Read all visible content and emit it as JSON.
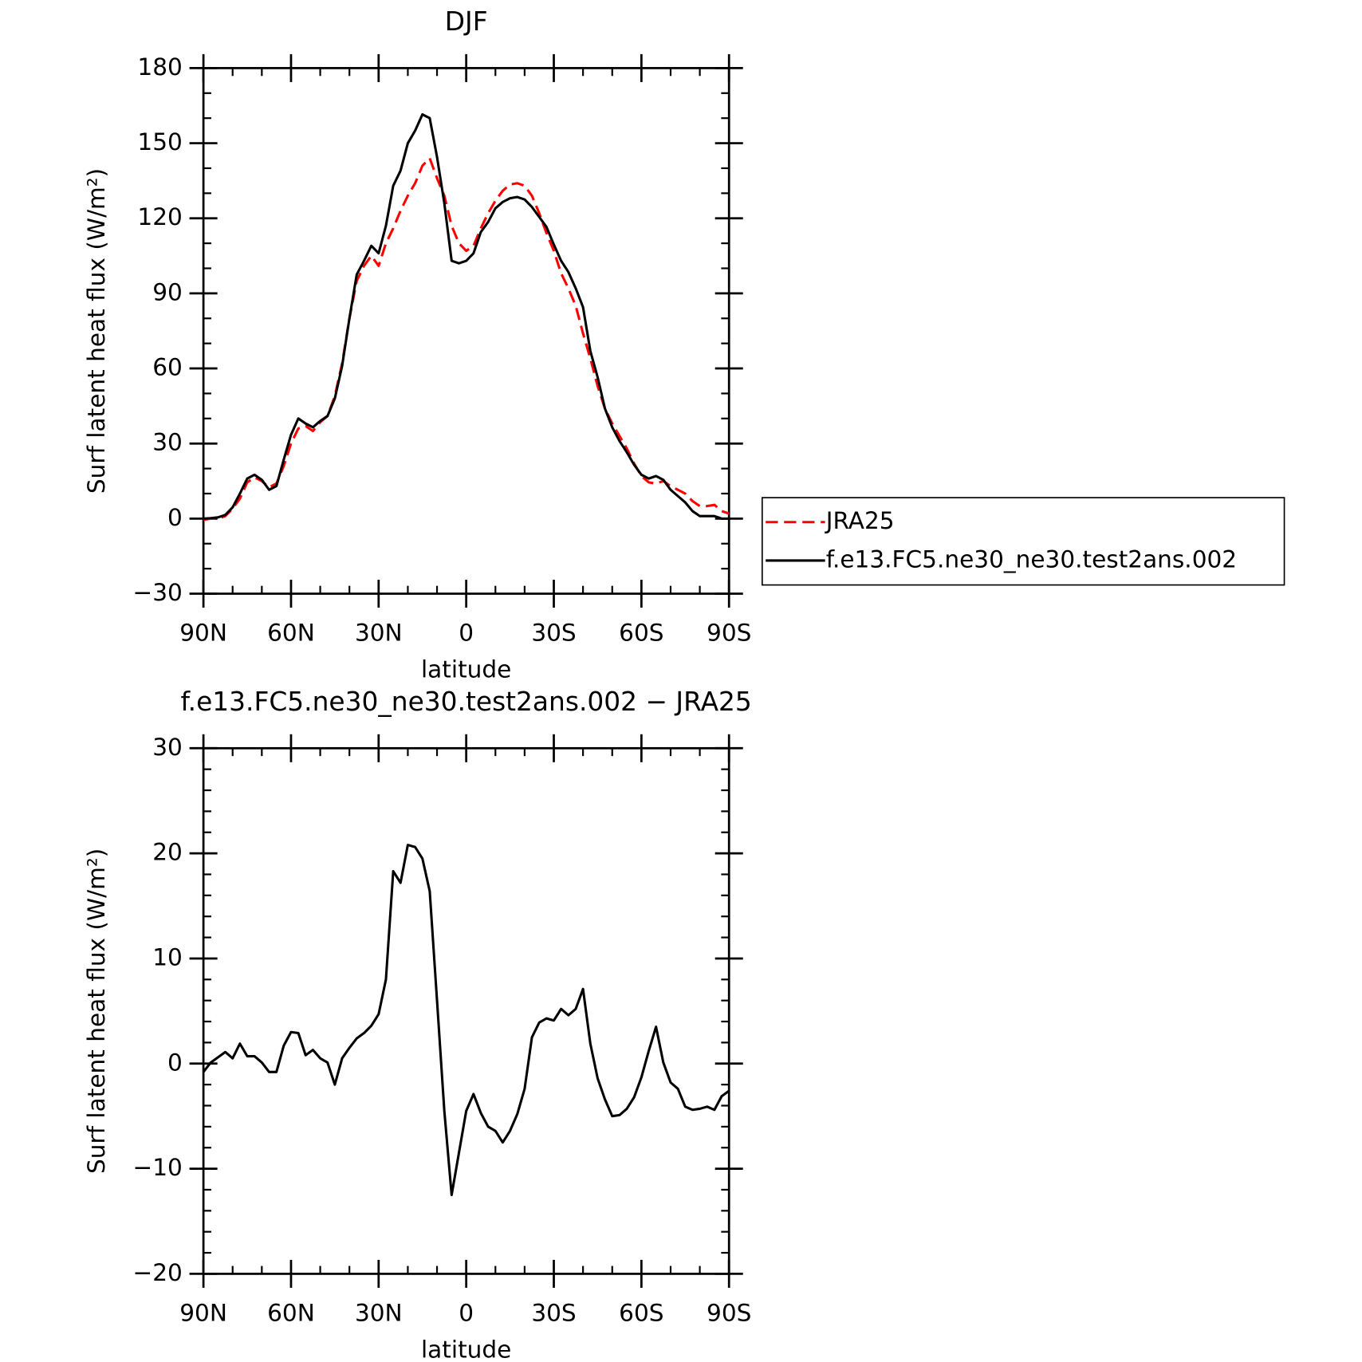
{
  "chart_data": [
    {
      "type": "line",
      "title": "DJF",
      "x_label": "latitude",
      "y_label": "Surf latent heat flux (W/m²)",
      "x": [
        90,
        87.5,
        85,
        82.5,
        80,
        77.5,
        75,
        72.5,
        70,
        67.5,
        65,
        62.5,
        60,
        57.5,
        55,
        52.5,
        50,
        47.5,
        45,
        42.5,
        40,
        37.5,
        35,
        32.5,
        30,
        27.5,
        25,
        22.5,
        20,
        17.5,
        15,
        12.5,
        10,
        7.5,
        5,
        2.5,
        0,
        -2.5,
        -5,
        -7.5,
        -10,
        -12.5,
        -15,
        -17.5,
        -20,
        -22.5,
        -25,
        -27.5,
        -30,
        -32.5,
        -35,
        -37.5,
        -40,
        -42.5,
        -45,
        -47.5,
        -50,
        -52.5,
        -55,
        -57.5,
        -60,
        -62.5,
        -65,
        -67.5,
        -70,
        -72.5,
        -75,
        -77.5,
        -80,
        -82.5,
        -85,
        -87.5,
        -90
      ],
      "xlim": [
        90,
        -90
      ],
      "xticks": [
        {
          "value": 90,
          "label": "90N"
        },
        {
          "value": 60,
          "label": "60N"
        },
        {
          "value": 30,
          "label": "30N"
        },
        0,
        {
          "value": -30,
          "label": "30S"
        },
        {
          "value": -60,
          "label": "60S"
        },
        {
          "value": -90,
          "label": "90S"
        }
      ],
      "ylim": [
        -30,
        180
      ],
      "yticks": [
        {
          "value": -30,
          "label": "−30"
        },
        0,
        30,
        60,
        90,
        120,
        150,
        180
      ],
      "legend": "right",
      "series": [
        {
          "name": "JRA25",
          "color": "#ff0000",
          "line_style": "dashed",
          "values": [
            -0.5,
            0,
            0,
            1,
            4,
            8,
            14.5,
            16.5,
            15,
            12.5,
            14,
            21,
            30,
            36,
            37,
            35,
            38.5,
            41,
            49,
            62,
            80,
            95,
            101,
            105,
            101,
            110,
            116,
            123,
            129,
            134,
            141,
            144,
            136,
            129,
            117,
            110,
            107,
            109,
            116,
            122,
            127,
            131,
            133.5,
            134,
            133,
            129,
            122,
            114,
            107,
            98,
            92,
            85,
            74,
            64,
            53,
            44,
            38,
            33,
            28,
            22,
            17,
            14.5,
            14,
            15,
            13,
            11.5,
            10,
            7,
            5,
            5,
            5.5,
            3,
            2
          ]
        },
        {
          "name": "f.e13.FC5.ne30_ne30.test2ans.002",
          "color": "#000000",
          "line_style": "solid",
          "values": [
            0,
            0.2,
            0.5,
            1.5,
            4.5,
            10,
            16,
            17.5,
            15.5,
            11.5,
            13,
            23.5,
            33.5,
            40,
            38,
            36.5,
            39,
            41,
            48,
            61,
            80,
            97.5,
            103,
            109,
            106,
            117,
            133,
            139,
            150,
            155,
            161.5,
            160,
            144.5,
            126,
            103,
            102,
            103,
            106,
            114.5,
            118.5,
            124,
            126.5,
            128,
            128.5,
            127.5,
            124.5,
            120.5,
            116.5,
            109.5,
            103,
            98.5,
            92,
            84.5,
            67,
            56.5,
            44,
            36.5,
            31,
            26.5,
            21.5,
            17.5,
            16,
            17,
            15.5,
            11.5,
            9,
            6.5,
            3,
            1,
            1,
            1,
            0,
            0
          ]
        }
      ]
    },
    {
      "type": "line",
      "title": "f.e13.FC5.ne30_ne30.test2ans.002 − JRA25",
      "x_label": "latitude",
      "y_label": "Surf latent heat flux (W/m²)",
      "x": [
        90,
        87.5,
        85,
        82.5,
        80,
        77.5,
        75,
        72.5,
        70,
        67.5,
        65,
        62.5,
        60,
        57.5,
        55,
        52.5,
        50,
        47.5,
        45,
        42.5,
        40,
        37.5,
        35,
        32.5,
        30,
        27.5,
        25,
        22.5,
        20,
        17.5,
        15,
        12.5,
        10,
        7.5,
        5,
        2.5,
        0,
        -2.5,
        -5,
        -7.5,
        -10,
        -12.5,
        -15,
        -17.5,
        -20,
        -22.5,
        -25,
        -27.5,
        -30,
        -32.5,
        -35,
        -37.5,
        -40,
        -42.5,
        -45,
        -47.5,
        -50,
        -52.5,
        -55,
        -57.5,
        -60,
        -62.5,
        -65,
        -67.5,
        -70,
        -72.5,
        -75,
        -77.5,
        -80,
        -82.5,
        -85,
        -87.5,
        -90
      ],
      "xlim": [
        90,
        -90
      ],
      "xticks": [
        {
          "value": 90,
          "label": "90N"
        },
        {
          "value": 60,
          "label": "60N"
        },
        {
          "value": 30,
          "label": "30N"
        },
        0,
        {
          "value": -30,
          "label": "30S"
        },
        {
          "value": -60,
          "label": "60S"
        },
        {
          "value": -90,
          "label": "90S"
        }
      ],
      "ylim": [
        -20,
        30
      ],
      "yticks": [
        {
          "value": -20,
          "label": "−20"
        },
        {
          "value": -10,
          "label": "−10"
        },
        0,
        10,
        20,
        30
      ],
      "color": "#000000",
      "values": [
        -0.8,
        0.1,
        0.6,
        1.1,
        0.5,
        1.9,
        0.7,
        0.7,
        0.1,
        -0.8,
        -0.8,
        1.7,
        3,
        2.9,
        0.8,
        1.3,
        0.5,
        0.1,
        -2,
        0.5,
        1.5,
        2.4,
        2.9,
        3.6,
        4.7,
        8,
        18.3,
        17.2,
        20.8,
        20.6,
        19.5,
        16.4,
        6,
        -4.5,
        -12.5,
        -8.5,
        -4.5,
        -2.9,
        -4.7,
        -6,
        -6.4,
        -7.5,
        -6.4,
        -4.8,
        -2.4,
        2.5,
        3.9,
        4.3,
        4.1,
        5.2,
        4.6,
        5.2,
        7.1,
        1.9,
        -1.4,
        -3.4,
        -5,
        -4.9,
        -4.3,
        -3.2,
        -1.3,
        1.2,
        3.5,
        0.1,
        -1.8,
        -2.4,
        -4.1,
        -4.4,
        -4.3,
        -4.1,
        -4.4,
        -3.1,
        -2.6
      ]
    }
  ]
}
